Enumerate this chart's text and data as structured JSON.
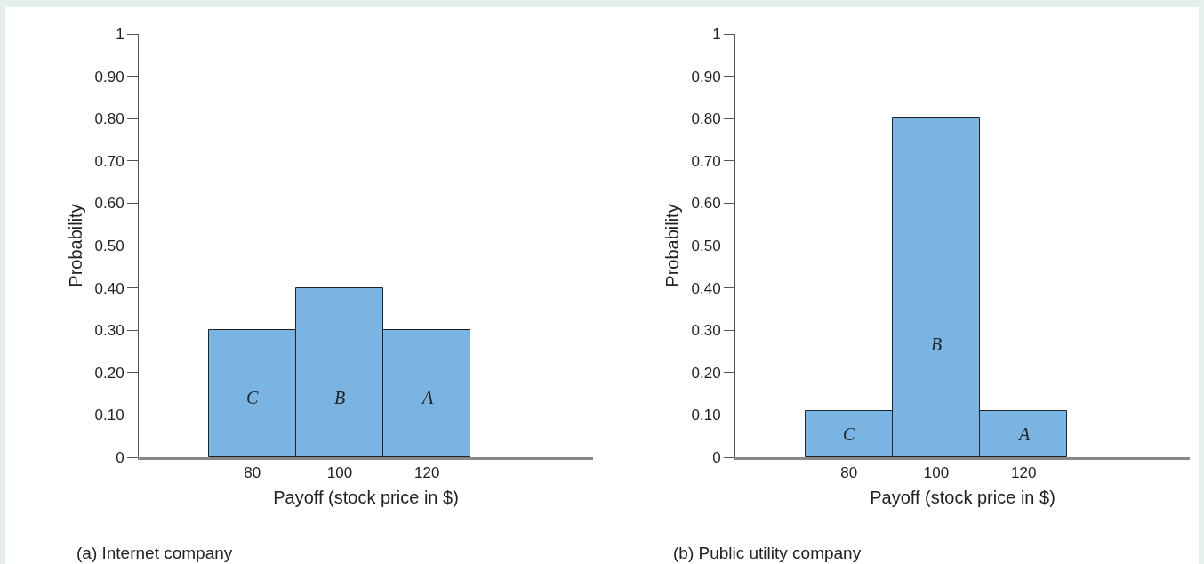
{
  "chart_data": [
    {
      "type": "bar",
      "categories": [
        "80",
        "100",
        "120"
      ],
      "values": [
        0.3,
        0.4,
        0.3
      ],
      "color": "#7ab4e2",
      "xlabel": "Payoff (stock price in $)",
      "ylabel": "Probability",
      "ylim": [
        0,
        1
      ],
      "yticks": [
        {
          "value": 0,
          "label": "0"
        },
        {
          "value": 0.1,
          "label": "0.10"
        },
        {
          "value": 0.2,
          "label": "0.20"
        },
        {
          "value": 0.3,
          "label": "0.30"
        },
        {
          "value": 0.4,
          "label": "0.40"
        },
        {
          "value": 0.5,
          "label": "0.50"
        },
        {
          "value": 0.6,
          "label": "0.60"
        },
        {
          "value": 0.7,
          "label": "0.70"
        },
        {
          "value": 0.8,
          "label": "0.80"
        },
        {
          "value": 0.9,
          "label": "0.90"
        },
        {
          "value": 1,
          "label": "1"
        }
      ],
      "grid": false,
      "legend": false,
      "annotations": [
        "C",
        "B",
        "A",
        "(a) Internet company"
      ]
    },
    {
      "type": "bar",
      "categories": [
        "80",
        "100",
        "120"
      ],
      "values": [
        0.11,
        0.8,
        0.11
      ],
      "color": "#7ab4e2",
      "xlabel": "Payoff (stock price in $)",
      "ylabel": "Probability",
      "ylim": [
        0,
        1
      ],
      "yticks": [
        {
          "value": 0,
          "label": "0"
        },
        {
          "value": 0.1,
          "label": "0.10"
        },
        {
          "value": 0.2,
          "label": "0.20"
        },
        {
          "value": 0.3,
          "label": "0.30"
        },
        {
          "value": 0.4,
          "label": "0.40"
        },
        {
          "value": 0.5,
          "label": "0.50"
        },
        {
          "value": 0.6,
          "label": "0.60"
        },
        {
          "value": 0.7,
          "label": "0.70"
        },
        {
          "value": 0.8,
          "label": "0.80"
        },
        {
          "value": 0.9,
          "label": "0.90"
        },
        {
          "value": 1,
          "label": "1"
        }
      ],
      "grid": false,
      "legend": false,
      "annotations": [
        "C",
        "B",
        "A",
        "(b) Public utility company"
      ]
    }
  ]
}
